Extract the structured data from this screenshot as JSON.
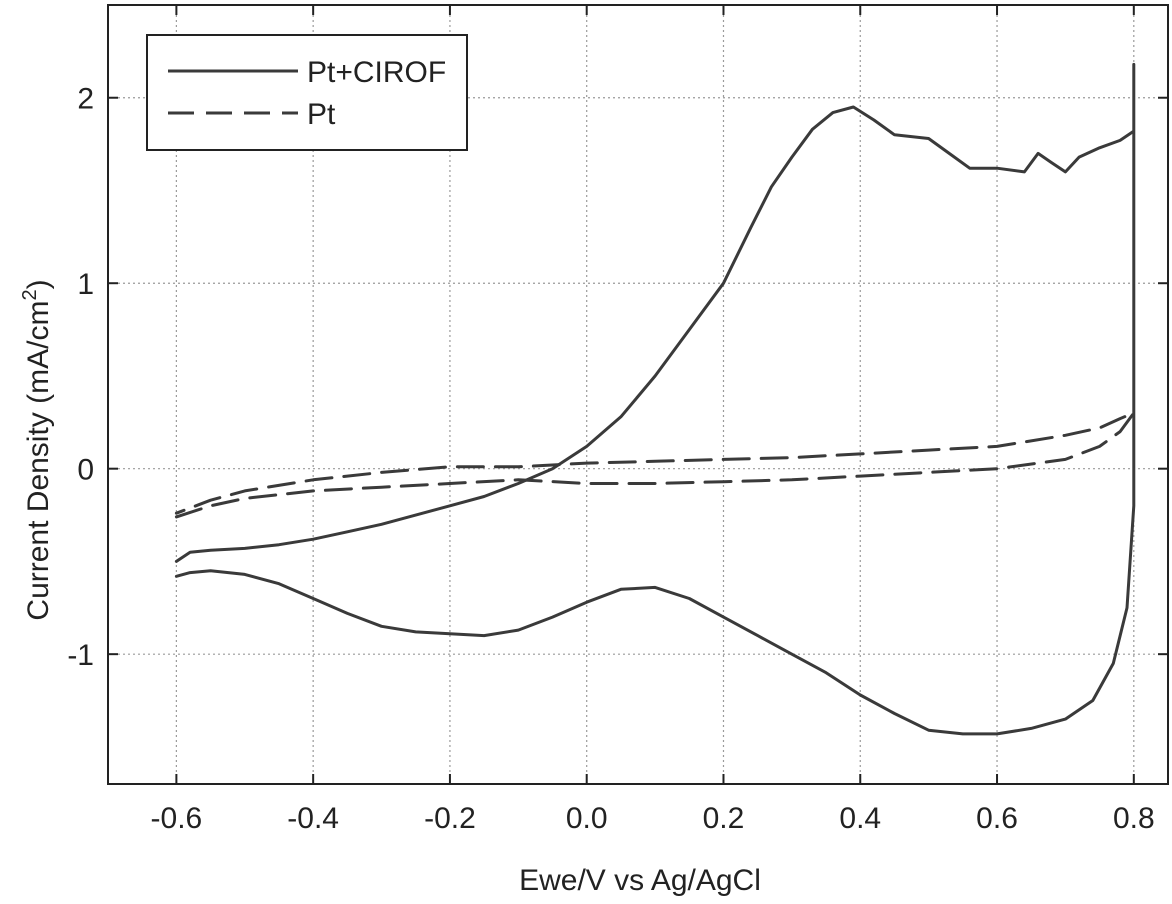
{
  "chart_data": {
    "type": "line",
    "xlabel": "Ewe/V vs Ag/AgCl",
    "ylabel_main": "Current Density (mA/cm",
    "ylabel_sup": "2",
    "ylabel_close": ")",
    "xlim": [
      -0.7,
      0.85
    ],
    "ylim": [
      -1.7,
      2.5
    ],
    "x_ticks": [
      -0.6,
      -0.4,
      -0.2,
      0.0,
      0.2,
      0.4,
      0.6,
      0.8
    ],
    "x_tick_labels": [
      "-0.6",
      "-0.4",
      "-0.2",
      "0.0",
      "0.2",
      "0.4",
      "0.6",
      "0.8"
    ],
    "y_ticks": [
      -1,
      0,
      1,
      2
    ],
    "y_tick_labels": [
      "-1",
      "0",
      "1",
      "2"
    ],
    "grid": true,
    "legend_position": "top-left",
    "colors": {
      "line": "#3a3a3a",
      "grid": "#9a9a9a",
      "frame": "#222222"
    },
    "series": [
      {
        "name": "Pt+CIROF",
        "style": "solid",
        "points": [
          [
            -0.6,
            -0.58
          ],
          [
            -0.58,
            -0.56
          ],
          [
            -0.55,
            -0.55
          ],
          [
            -0.5,
            -0.57
          ],
          [
            -0.45,
            -0.62
          ],
          [
            -0.4,
            -0.7
          ],
          [
            -0.35,
            -0.78
          ],
          [
            -0.3,
            -0.85
          ],
          [
            -0.25,
            -0.88
          ],
          [
            -0.2,
            -0.89
          ],
          [
            -0.15,
            -0.9
          ],
          [
            -0.1,
            -0.87
          ],
          [
            -0.05,
            -0.8
          ],
          [
            0.0,
            -0.72
          ],
          [
            0.05,
            -0.65
          ],
          [
            0.1,
            -0.64
          ],
          [
            0.15,
            -0.7
          ],
          [
            0.2,
            -0.8
          ],
          [
            0.25,
            -0.9
          ],
          [
            0.3,
            -1.0
          ],
          [
            0.35,
            -1.1
          ],
          [
            0.4,
            -1.22
          ],
          [
            0.45,
            -1.32
          ],
          [
            0.5,
            -1.41
          ],
          [
            0.55,
            -1.43
          ],
          [
            0.6,
            -1.43
          ],
          [
            0.65,
            -1.4
          ],
          [
            0.7,
            -1.35
          ],
          [
            0.74,
            -1.25
          ],
          [
            0.77,
            -1.05
          ],
          [
            0.79,
            -0.75
          ],
          [
            0.8,
            -0.2
          ],
          [
            0.8,
            0.3
          ],
          [
            0.8,
            1.0
          ],
          [
            0.8,
            1.8
          ],
          [
            0.8,
            2.18
          ],
          [
            0.8,
            1.82
          ],
          [
            0.78,
            1.77
          ],
          [
            0.75,
            1.73
          ],
          [
            0.72,
            1.68
          ],
          [
            0.7,
            1.6
          ],
          [
            0.68,
            1.65
          ],
          [
            0.66,
            1.7
          ],
          [
            0.64,
            1.6
          ],
          [
            0.6,
            1.62
          ],
          [
            0.56,
            1.62
          ],
          [
            0.53,
            1.7
          ],
          [
            0.5,
            1.78
          ],
          [
            0.45,
            1.8
          ],
          [
            0.42,
            1.88
          ],
          [
            0.39,
            1.95
          ],
          [
            0.36,
            1.92
          ],
          [
            0.33,
            1.83
          ],
          [
            0.3,
            1.68
          ],
          [
            0.27,
            1.52
          ],
          [
            0.24,
            1.3
          ],
          [
            0.2,
            1.0
          ],
          [
            0.15,
            0.75
          ],
          [
            0.1,
            0.5
          ],
          [
            0.05,
            0.28
          ],
          [
            0.0,
            0.12
          ],
          [
            -0.05,
            0.0
          ],
          [
            -0.1,
            -0.08
          ],
          [
            -0.15,
            -0.15
          ],
          [
            -0.2,
            -0.2
          ],
          [
            -0.25,
            -0.25
          ],
          [
            -0.3,
            -0.3
          ],
          [
            -0.35,
            -0.34
          ],
          [
            -0.4,
            -0.38
          ],
          [
            -0.45,
            -0.41
          ],
          [
            -0.5,
            -0.43
          ],
          [
            -0.55,
            -0.44
          ],
          [
            -0.58,
            -0.45
          ],
          [
            -0.6,
            -0.5
          ]
        ]
      },
      {
        "name": "Pt",
        "style": "dashed",
        "points": [
          [
            -0.6,
            -0.26
          ],
          [
            -0.55,
            -0.2
          ],
          [
            -0.5,
            -0.16
          ],
          [
            -0.4,
            -0.12
          ],
          [
            -0.3,
            -0.1
          ],
          [
            -0.2,
            -0.08
          ],
          [
            -0.1,
            -0.06
          ],
          [
            0.0,
            -0.08
          ],
          [
            0.1,
            -0.08
          ],
          [
            0.2,
            -0.07
          ],
          [
            0.3,
            -0.06
          ],
          [
            0.4,
            -0.04
          ],
          [
            0.5,
            -0.02
          ],
          [
            0.6,
            0.0
          ],
          [
            0.7,
            0.05
          ],
          [
            0.75,
            0.12
          ],
          [
            0.78,
            0.2
          ],
          [
            0.8,
            0.3
          ],
          [
            0.78,
            0.27
          ],
          [
            0.75,
            0.22
          ],
          [
            0.7,
            0.18
          ],
          [
            0.6,
            0.12
          ],
          [
            0.5,
            0.1
          ],
          [
            0.4,
            0.08
          ],
          [
            0.3,
            0.06
          ],
          [
            0.2,
            0.05
          ],
          [
            0.1,
            0.04
          ],
          [
            0.0,
            0.03
          ],
          [
            -0.1,
            0.01
          ],
          [
            -0.2,
            0.01
          ],
          [
            -0.3,
            -0.02
          ],
          [
            -0.4,
            -0.06
          ],
          [
            -0.5,
            -0.12
          ],
          [
            -0.55,
            -0.17
          ],
          [
            -0.6,
            -0.24
          ]
        ]
      }
    ]
  }
}
